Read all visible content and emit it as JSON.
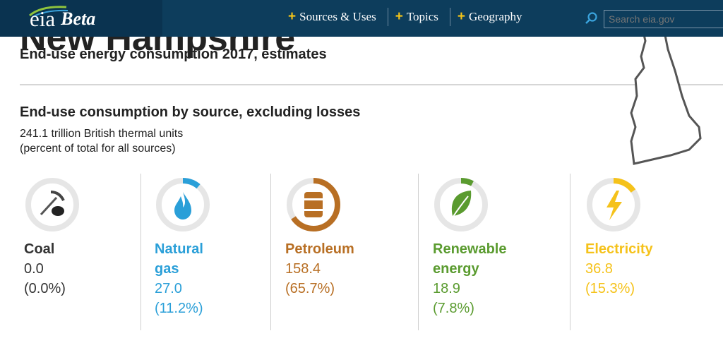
{
  "header": {
    "logo_text": "eia",
    "logo_badge": "Beta",
    "nav": [
      {
        "label": "Sources & Uses"
      },
      {
        "label": "Topics"
      },
      {
        "label": "Geography"
      }
    ],
    "search_placeholder": "Search eia.gov",
    "search_icon": "search-icon"
  },
  "page": {
    "title_partial": "New Hampshire",
    "subtitle": "End-use energy consumption 2017, estimates"
  },
  "section": {
    "title": "End-use consumption by source, excluding losses",
    "units": "241.1 trillion British thermal units",
    "percent_note": "(percent of total for all sources)"
  },
  "sources": [
    {
      "label_line1": "Coal",
      "label_line2": "",
      "value": "0.0",
      "percent_text": "(0.0%)",
      "share": 0.0,
      "color": "#333333",
      "icon": "coal-icon"
    },
    {
      "label_line1": "Natural",
      "label_line2": "gas",
      "value": "27.0",
      "percent_text": "(11.2%)",
      "share": 0.112,
      "color": "#2a9fd8",
      "icon": "flame-icon"
    },
    {
      "label_line1": "Petroleum",
      "label_line2": "",
      "value": "158.4",
      "percent_text": "(65.7%)",
      "share": 0.657,
      "color": "#b86f24",
      "icon": "barrel-icon"
    },
    {
      "label_line1": "Renewable",
      "label_line2": "energy",
      "value": "18.9",
      "percent_text": "(7.8%)",
      "share": 0.078,
      "color": "#5a9b2f",
      "icon": "leaf-icon"
    },
    {
      "label_line1": "Electricity",
      "label_line2": "",
      "value": "36.8",
      "percent_text": "(15.3%)",
      "share": 0.153,
      "color": "#f5c21a",
      "icon": "lightning-icon"
    }
  ]
}
